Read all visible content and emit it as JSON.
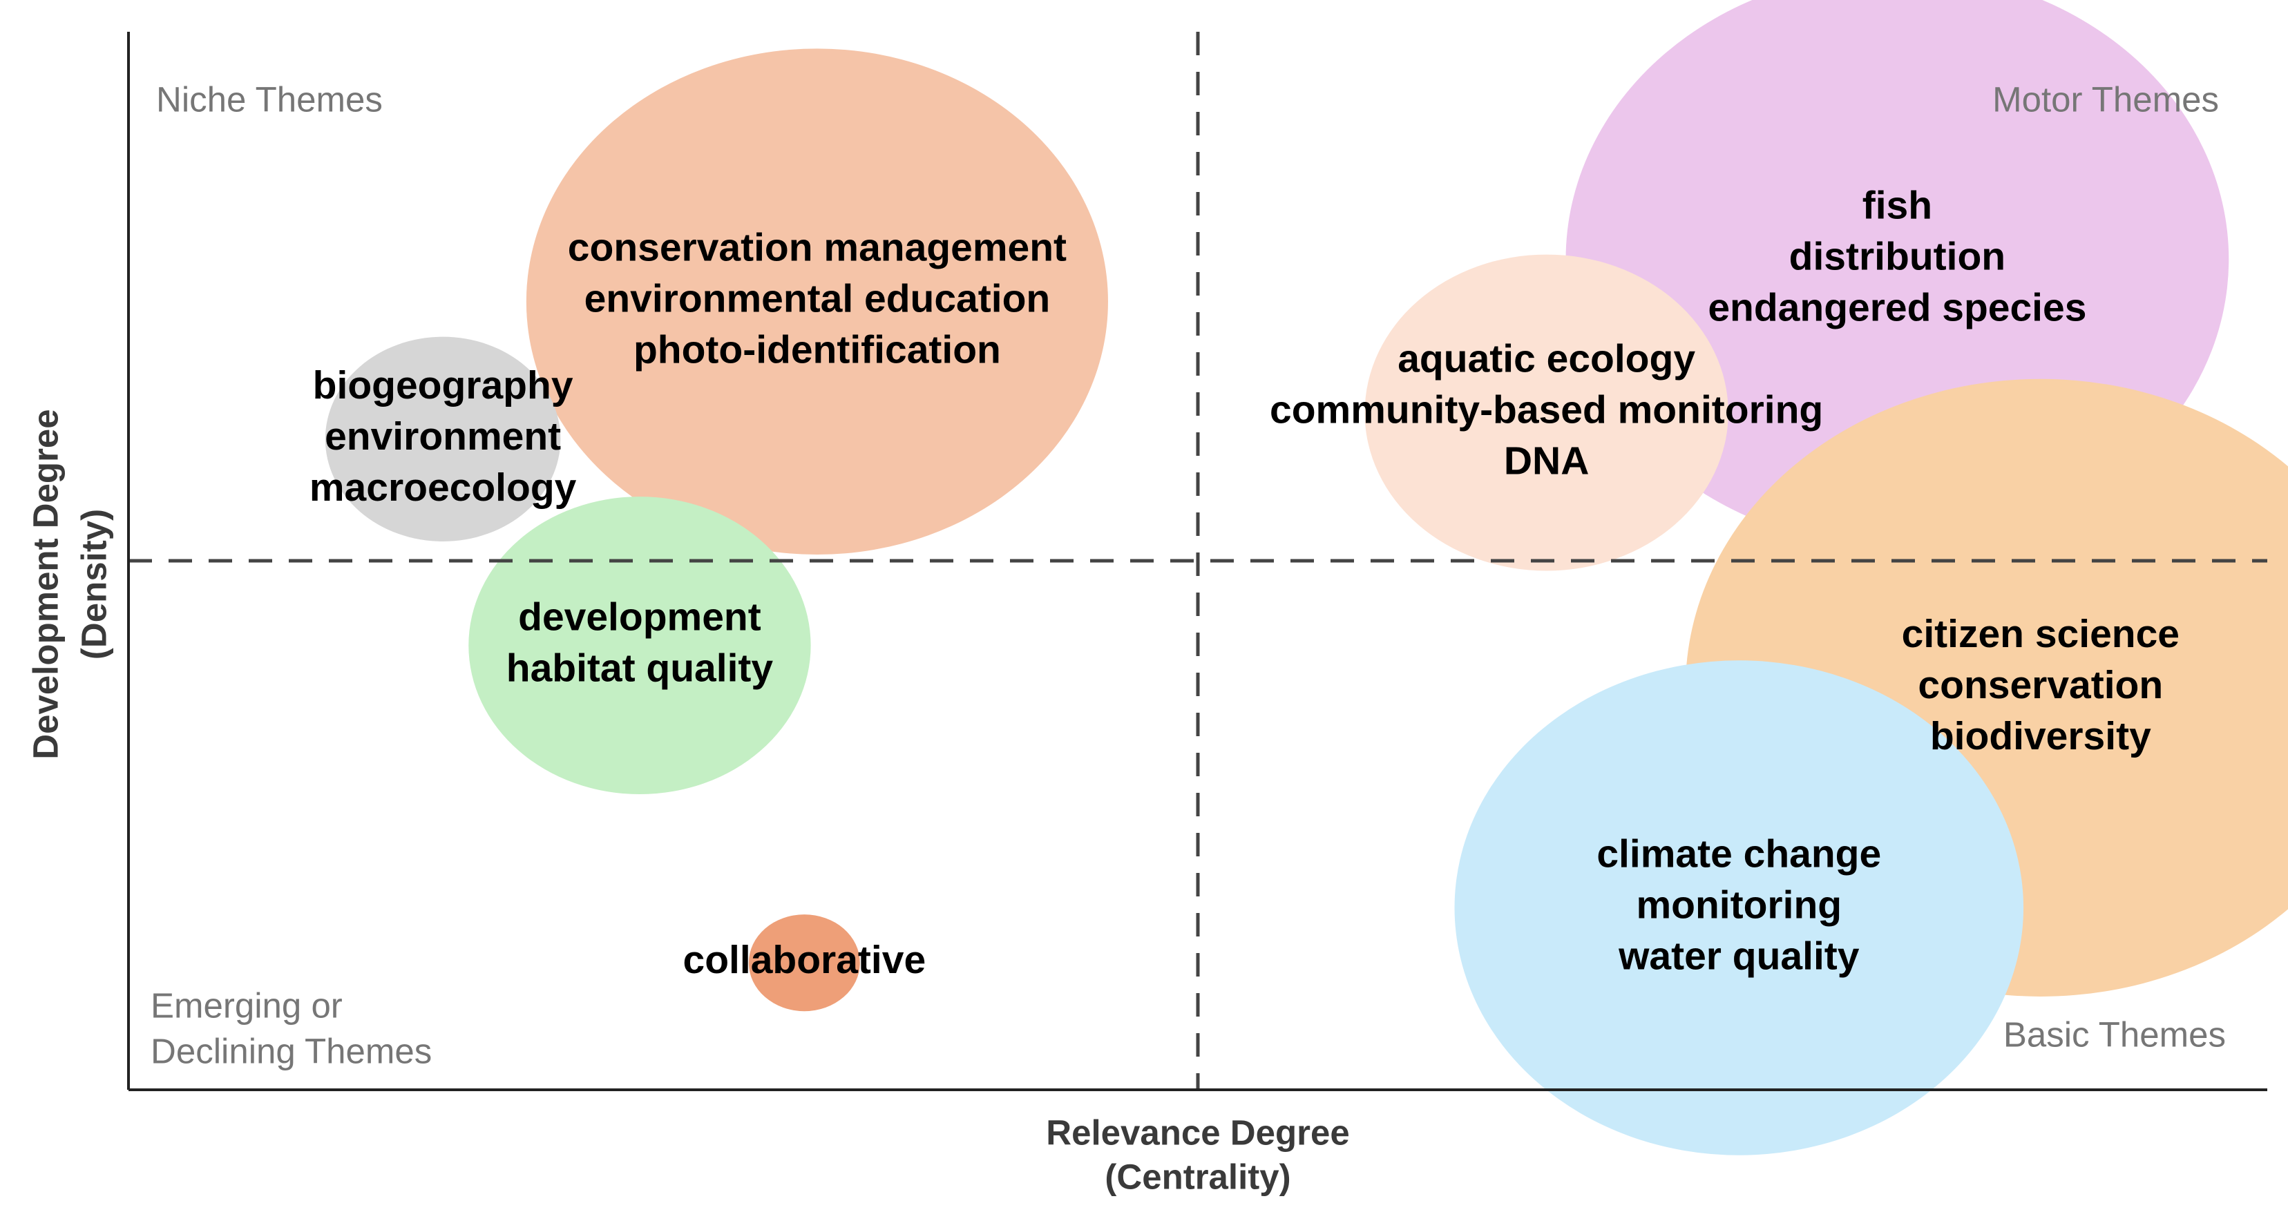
{
  "chart_data": {
    "type": "bubble",
    "title": "",
    "xlabel": [
      "Relevance Degree",
      "(Centrality)"
    ],
    "ylabel": [
      "Development Degree",
      "(Density)"
    ],
    "xlim": [
      0,
      100
    ],
    "ylim": [
      0,
      100
    ],
    "divider": {
      "x": 50,
      "y": 50
    },
    "quadrants": {
      "top_left": [
        "Niche Themes"
      ],
      "top_right": [
        "Motor Themes"
      ],
      "bottom_left": [
        "Emerging or",
        "Declining Themes"
      ],
      "bottom_right": [
        "Basic Themes"
      ]
    },
    "clusters": [
      {
        "id": "conservation-management",
        "labels": [
          "conservation management",
          "environmental education",
          "photo-identification"
        ],
        "x": 32.2,
        "y": 74.5,
        "size": 13.6,
        "color": "#F5C4A8"
      },
      {
        "id": "biogeography",
        "labels": [
          "biogeography",
          "environment",
          "macroecology"
        ],
        "x": 14.7,
        "y": 61.5,
        "size": 5.5,
        "color": "#D6D6D6"
      },
      {
        "id": "fish",
        "labels": [
          "fish",
          "distribution",
          "endangered species"
        ],
        "x": 82.7,
        "y": 78.5,
        "size": 15.5,
        "color": "#ECC6EC"
      },
      {
        "id": "aquatic-ecology",
        "labels": [
          "aquatic ecology",
          "community-based monitoring",
          "DNA"
        ],
        "x": 66.3,
        "y": 64.0,
        "size": 8.5,
        "color": "#FCE2D4"
      },
      {
        "id": "citizen-science",
        "labels": [
          "citizen science",
          "conservation",
          "biodiversity"
        ],
        "x": 89.4,
        "y": 38.0,
        "size": 16.6,
        "color": "#F9D1A5"
      },
      {
        "id": "development",
        "labels": [
          "development",
          "habitat quality"
        ],
        "x": 23.9,
        "y": 42.0,
        "size": 8.0,
        "color": "#C4EFC4"
      },
      {
        "id": "climate-change",
        "labels": [
          "climate change",
          "monitoring",
          "water quality"
        ],
        "x": 75.3,
        "y": 17.2,
        "size": 13.3,
        "color": "#C9EAFA"
      },
      {
        "id": "collaborative",
        "labels": [
          "collaborative"
        ],
        "x": 31.6,
        "y": 12.0,
        "size": 2.6,
        "color": "#EE9F78"
      }
    ]
  }
}
